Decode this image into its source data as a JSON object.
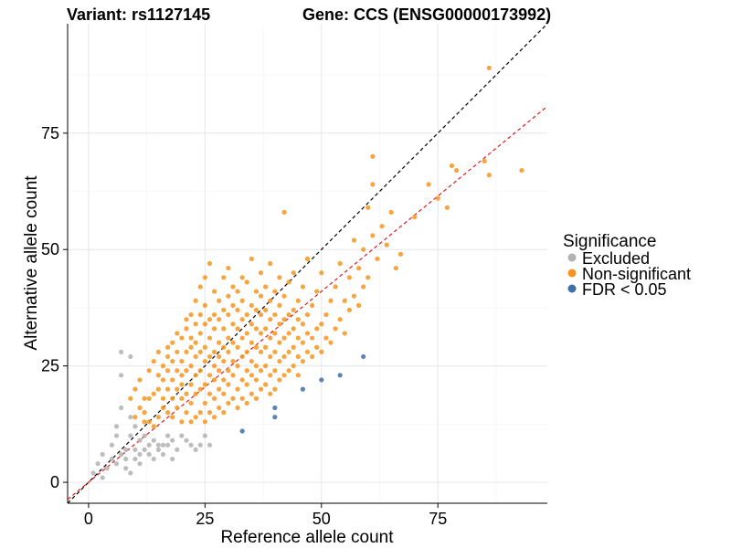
{
  "chart_data": {
    "type": "scatter",
    "title_left": "Variant: rs1127145",
    "title_right": "Gene: CCS (ENSG00000173992)",
    "xlabel": "Reference allele count",
    "ylabel": "Alternative allele count",
    "xlim": [
      -4.5,
      98.5
    ],
    "ylim": [
      -4.5,
      98.5
    ],
    "xticks": [
      0,
      25,
      50,
      75
    ],
    "yticks": [
      0,
      25,
      50,
      75
    ],
    "grid": true,
    "legend": {
      "title": "Significance",
      "placement": "right",
      "entries": [
        {
          "key": "excluded",
          "label": "Excluded",
          "color": "#b2b2b2"
        },
        {
          "key": "nonsig",
          "label": "Non-significant",
          "color": "#f7941d"
        },
        {
          "key": "fdr",
          "label": "FDR < 0.05",
          "color": "#3e6fa8"
        }
      ]
    },
    "reference_lines": [
      {
        "name": "y = x",
        "slope": 1.0,
        "intercept": 0,
        "color": "#000000",
        "dash": true
      },
      {
        "name": "fit",
        "slope": 0.82,
        "intercept": 0,
        "color": "#e41a1c",
        "dash": true
      }
    ],
    "series": [
      {
        "key": "excluded",
        "color": "#b2b2b2",
        "points": [
          [
            1,
            2
          ],
          [
            2,
            4
          ],
          [
            3,
            1
          ],
          [
            3,
            6
          ],
          [
            4,
            3
          ],
          [
            5,
            8
          ],
          [
            5,
            5
          ],
          [
            6,
            10
          ],
          [
            6,
            12
          ],
          [
            6,
            4
          ],
          [
            7,
            16
          ],
          [
            7,
            6
          ],
          [
            7,
            23
          ],
          [
            7,
            28
          ],
          [
            8,
            3
          ],
          [
            8,
            5
          ],
          [
            8,
            7
          ],
          [
            9,
            10
          ],
          [
            9,
            2
          ],
          [
            9,
            14
          ],
          [
            9,
            27
          ],
          [
            10,
            5
          ],
          [
            10,
            7
          ],
          [
            10,
            12
          ],
          [
            11,
            6
          ],
          [
            11,
            9
          ],
          [
            11,
            4
          ],
          [
            12,
            7
          ],
          [
            12,
            10
          ],
          [
            13,
            8
          ],
          [
            13,
            6
          ],
          [
            14,
            5
          ],
          [
            14,
            9
          ],
          [
            15,
            8
          ],
          [
            15,
            7
          ],
          [
            16,
            6
          ],
          [
            16,
            8
          ],
          [
            17,
            10
          ],
          [
            17,
            8
          ],
          [
            18,
            9
          ],
          [
            18,
            5
          ],
          [
            19,
            7
          ],
          [
            20,
            10
          ],
          [
            21,
            9
          ],
          [
            22,
            8
          ],
          [
            23,
            7
          ],
          [
            24,
            8
          ],
          [
            25,
            10
          ],
          [
            26,
            8
          ]
        ]
      },
      {
        "key": "nonsig",
        "color": "#f7941d",
        "points": [
          [
            9,
            18
          ],
          [
            10,
            14
          ],
          [
            10,
            20
          ],
          [
            11,
            16
          ],
          [
            11,
            22
          ],
          [
            12,
            15
          ],
          [
            12,
            13
          ],
          [
            12,
            18
          ],
          [
            13,
            18
          ],
          [
            13,
            24
          ],
          [
            13,
            13
          ],
          [
            14,
            12
          ],
          [
            14,
            19
          ],
          [
            14,
            26
          ],
          [
            15,
            14
          ],
          [
            15,
            20
          ],
          [
            15,
            23
          ],
          [
            15,
            28
          ],
          [
            16,
            16
          ],
          [
            16,
            22
          ],
          [
            16,
            25
          ],
          [
            16,
            18
          ],
          [
            17,
            15
          ],
          [
            17,
            27
          ],
          [
            17,
            20
          ],
          [
            17,
            24
          ],
          [
            17,
            29
          ],
          [
            18,
            14
          ],
          [
            18,
            22
          ],
          [
            18,
            18
          ],
          [
            18,
            30
          ],
          [
            18,
            26
          ],
          [
            19,
            16
          ],
          [
            19,
            24
          ],
          [
            19,
            28
          ],
          [
            19,
            20
          ],
          [
            19,
            32
          ],
          [
            20,
            13
          ],
          [
            20,
            18
          ],
          [
            20,
            23
          ],
          [
            20,
            26
          ],
          [
            20,
            31
          ],
          [
            20,
            21
          ],
          [
            21,
            15
          ],
          [
            21,
            19
          ],
          [
            21,
            24
          ],
          [
            21,
            28
          ],
          [
            21,
            33
          ],
          [
            21,
            35
          ],
          [
            22,
            13
          ],
          [
            22,
            17
          ],
          [
            22,
            21
          ],
          [
            22,
            25
          ],
          [
            22,
            29
          ],
          [
            22,
            31
          ],
          [
            22,
            36
          ],
          [
            23,
            14
          ],
          [
            23,
            19
          ],
          [
            23,
            23
          ],
          [
            23,
            27
          ],
          [
            23,
            30
          ],
          [
            23,
            34
          ],
          [
            23,
            39
          ],
          [
            24,
            15
          ],
          [
            24,
            20
          ],
          [
            24,
            24
          ],
          [
            24,
            28
          ],
          [
            24,
            32
          ],
          [
            24,
            36
          ],
          [
            24,
            42
          ],
          [
            25,
            13
          ],
          [
            25,
            17
          ],
          [
            25,
            21
          ],
          [
            25,
            26
          ],
          [
            25,
            29
          ],
          [
            25,
            34
          ],
          [
            25,
            38
          ],
          [
            25,
            44
          ],
          [
            26,
            15
          ],
          [
            26,
            19
          ],
          [
            26,
            23
          ],
          [
            26,
            27
          ],
          [
            26,
            31
          ],
          [
            26,
            35
          ],
          [
            26,
            47
          ],
          [
            27,
            14
          ],
          [
            27,
            18
          ],
          [
            27,
            22
          ],
          [
            27,
            25
          ],
          [
            27,
            28
          ],
          [
            27,
            33
          ],
          [
            27,
            36
          ],
          [
            27,
            41
          ],
          [
            28,
            16
          ],
          [
            28,
            20
          ],
          [
            28,
            24
          ],
          [
            28,
            27
          ],
          [
            28,
            30
          ],
          [
            28,
            35
          ],
          [
            28,
            39
          ],
          [
            29,
            15
          ],
          [
            29,
            19
          ],
          [
            29,
            22
          ],
          [
            29,
            26
          ],
          [
            29,
            29
          ],
          [
            29,
            33
          ],
          [
            29,
            37
          ],
          [
            29,
            44
          ],
          [
            30,
            17
          ],
          [
            30,
            21
          ],
          [
            30,
            24
          ],
          [
            30,
            28
          ],
          [
            30,
            31
          ],
          [
            30,
            36
          ],
          [
            30,
            40
          ],
          [
            30,
            46
          ],
          [
            31,
            18
          ],
          [
            31,
            23
          ],
          [
            31,
            26
          ],
          [
            31,
            30
          ],
          [
            31,
            34
          ],
          [
            31,
            38
          ],
          [
            31,
            42
          ],
          [
            32,
            16
          ],
          [
            32,
            20
          ],
          [
            32,
            25
          ],
          [
            32,
            29
          ],
          [
            32,
            33
          ],
          [
            32,
            37
          ],
          [
            32,
            41
          ],
          [
            33,
            18
          ],
          [
            33,
            22
          ],
          [
            33,
            27
          ],
          [
            33,
            31
          ],
          [
            33,
            35
          ],
          [
            33,
            39
          ],
          [
            33,
            44
          ],
          [
            34,
            17
          ],
          [
            34,
            21
          ],
          [
            34,
            24
          ],
          [
            34,
            28
          ],
          [
            34,
            32
          ],
          [
            34,
            36
          ],
          [
            34,
            43
          ],
          [
            35,
            19
          ],
          [
            35,
            23
          ],
          [
            35,
            26
          ],
          [
            35,
            30
          ],
          [
            35,
            34
          ],
          [
            35,
            38
          ],
          [
            35,
            48
          ],
          [
            36,
            18
          ],
          [
            36,
            22
          ],
          [
            36,
            25
          ],
          [
            36,
            29
          ],
          [
            36,
            33
          ],
          [
            36,
            37
          ],
          [
            36,
            41
          ],
          [
            37,
            20
          ],
          [
            37,
            24
          ],
          [
            37,
            28
          ],
          [
            37,
            32
          ],
          [
            37,
            36
          ],
          [
            37,
            40
          ],
          [
            37,
            45
          ],
          [
            38,
            21
          ],
          [
            38,
            25
          ],
          [
            38,
            29
          ],
          [
            38,
            33
          ],
          [
            38,
            37
          ],
          [
            38,
            42
          ],
          [
            39,
            19
          ],
          [
            39,
            23
          ],
          [
            39,
            27
          ],
          [
            39,
            31
          ],
          [
            39,
            35
          ],
          [
            39,
            39
          ],
          [
            39,
            47
          ],
          [
            40,
            20
          ],
          [
            40,
            24
          ],
          [
            40,
            28
          ],
          [
            40,
            32
          ],
          [
            40,
            36
          ],
          [
            40,
            41
          ],
          [
            41,
            22
          ],
          [
            41,
            26
          ],
          [
            41,
            30
          ],
          [
            41,
            34
          ],
          [
            41,
            38
          ],
          [
            41,
            44
          ],
          [
            42,
            23
          ],
          [
            42,
            27
          ],
          [
            42,
            31
          ],
          [
            42,
            35
          ],
          [
            42,
            40
          ],
          [
            42,
            58
          ],
          [
            43,
            24
          ],
          [
            43,
            28
          ],
          [
            43,
            32
          ],
          [
            43,
            36
          ],
          [
            43,
            43
          ],
          [
            44,
            25
          ],
          [
            44,
            29
          ],
          [
            44,
            33
          ],
          [
            44,
            37
          ],
          [
            44,
            45
          ],
          [
            45,
            23
          ],
          [
            45,
            27
          ],
          [
            45,
            31
          ],
          [
            45,
            35
          ],
          [
            45,
            39
          ],
          [
            46,
            26
          ],
          [
            46,
            30
          ],
          [
            46,
            34
          ],
          [
            46,
            42
          ],
          [
            47,
            28
          ],
          [
            47,
            32
          ],
          [
            47,
            36
          ],
          [
            47,
            48
          ],
          [
            48,
            27
          ],
          [
            48,
            31
          ],
          [
            48,
            38
          ],
          [
            49,
            29
          ],
          [
            49,
            33
          ],
          [
            49,
            41
          ],
          [
            50,
            28
          ],
          [
            50,
            34
          ],
          [
            50,
            45
          ],
          [
            51,
            31
          ],
          [
            51,
            36
          ],
          [
            52,
            30
          ],
          [
            52,
            39
          ],
          [
            53,
            33
          ],
          [
            53,
            42
          ],
          [
            54,
            35
          ],
          [
            54,
            47
          ],
          [
            55,
            32
          ],
          [
            55,
            39
          ],
          [
            56,
            37
          ],
          [
            56,
            44
          ],
          [
            57,
            40
          ],
          [
            57,
            52
          ],
          [
            58,
            38
          ],
          [
            58,
            46
          ],
          [
            59,
            42
          ],
          [
            59,
            50
          ],
          [
            60,
            44
          ],
          [
            60,
            59
          ],
          [
            61,
            53
          ],
          [
            61,
            64
          ],
          [
            61,
            70
          ],
          [
            62,
            48
          ],
          [
            63,
            55
          ],
          [
            64,
            51
          ],
          [
            65,
            58
          ],
          [
            66,
            46
          ],
          [
            67,
            49
          ],
          [
            70,
            57
          ],
          [
            73,
            64
          ],
          [
            75,
            61
          ],
          [
            77,
            59
          ],
          [
            78,
            68
          ],
          [
            79,
            67
          ],
          [
            85,
            69
          ],
          [
            86,
            89
          ],
          [
            86,
            66
          ],
          [
            93,
            67
          ]
        ]
      },
      {
        "key": "fdr",
        "color": "#3e6fa8",
        "points": [
          [
            33,
            11
          ],
          [
            40,
            14
          ],
          [
            40,
            16
          ],
          [
            46,
            20
          ],
          [
            50,
            22
          ],
          [
            54,
            23
          ],
          [
            59,
            27
          ]
        ]
      }
    ]
  }
}
